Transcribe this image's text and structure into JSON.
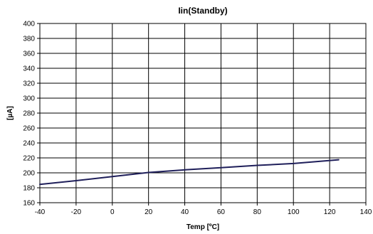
{
  "chart_data": {
    "type": "line",
    "title": "Iin(Standby)",
    "xlabel": "Temp [ºC]",
    "ylabel": "[µA]",
    "xlim": [
      -40,
      140
    ],
    "ylim": [
      160,
      400
    ],
    "xticks": [
      "-40",
      "-20",
      "0",
      "20",
      "40",
      "60",
      "80",
      "100",
      "120",
      "140"
    ],
    "yticks": [
      "160",
      "180",
      "200",
      "220",
      "240",
      "260",
      "280",
      "300",
      "320",
      "340",
      "360",
      "380",
      "400"
    ],
    "grid": true,
    "legend": "none",
    "series": [
      {
        "color": "#1f1f5a",
        "x": [
          -40,
          -20,
          0,
          20,
          40,
          60,
          80,
          100,
          125
        ],
        "y": [
          184.5,
          189.5,
          195,
          200.5,
          204,
          207,
          210,
          212.5,
          217.5
        ]
      }
    ]
  }
}
